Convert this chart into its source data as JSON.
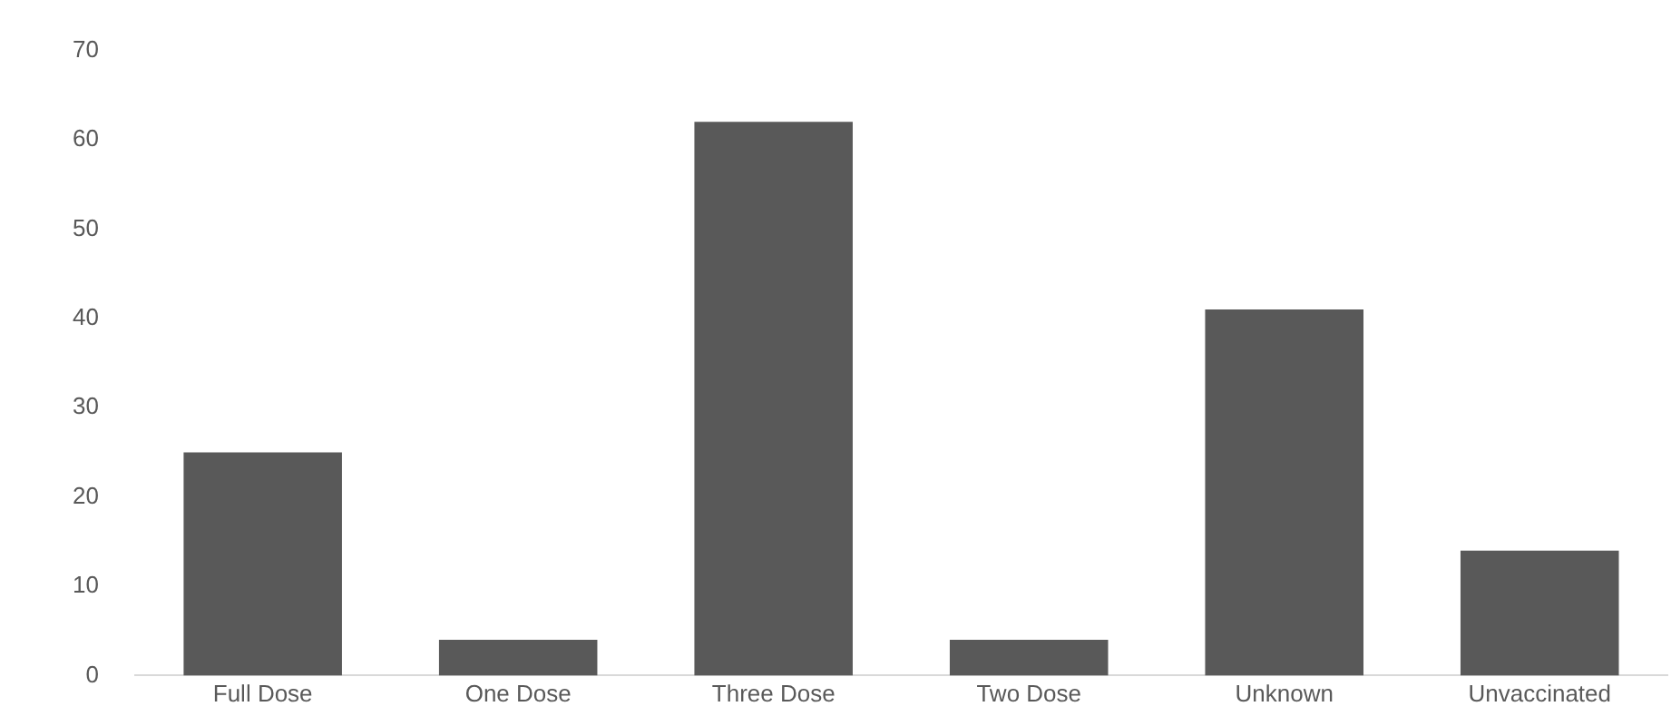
{
  "chart_data": {
    "type": "bar",
    "categories": [
      "Full Dose",
      "One Dose",
      "Three Dose",
      "Two Dose",
      "Unknown",
      "Unvaccinated"
    ],
    "values": [
      25,
      4,
      62,
      4,
      41,
      14
    ],
    "color": "#595959",
    "ylim": [
      0,
      70
    ],
    "yticks": [
      0,
      10,
      20,
      30,
      40,
      50,
      60,
      70
    ],
    "grid": false,
    "legend": false
  }
}
